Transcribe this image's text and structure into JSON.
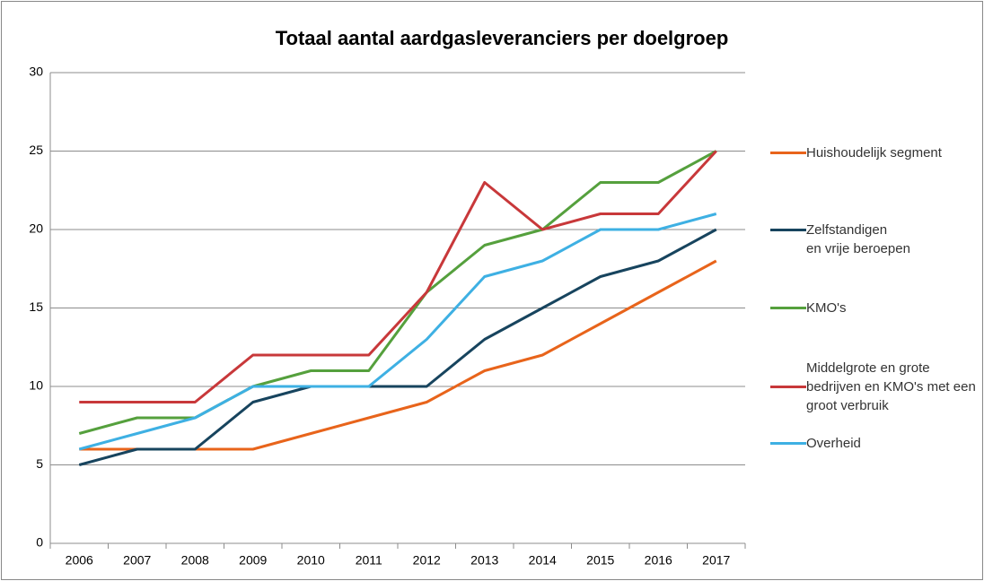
{
  "chart_data": {
    "type": "line",
    "title": "Totaal aantal aardgasleveranciers per doelgroep",
    "categories": [
      "2006",
      "2007",
      "2008",
      "2009",
      "2010",
      "2011",
      "2012",
      "2013",
      "2014",
      "2015",
      "2016",
      "2017"
    ],
    "series": [
      {
        "name": "Huishoudelijk segment",
        "color": "#e8641b",
        "values": [
          6,
          6,
          6,
          6,
          7,
          8,
          9,
          11,
          12,
          14,
          16,
          18
        ]
      },
      {
        "name": "Zelfstandigen\nen vrije beroepen",
        "color": "#17445e",
        "values": [
          5,
          6,
          6,
          9,
          10,
          10,
          10,
          13,
          15,
          17,
          18,
          20
        ]
      },
      {
        "name": "KMO's",
        "color": "#55a03d",
        "values": [
          7,
          8,
          8,
          10,
          11,
          11,
          16,
          19,
          20,
          23,
          23,
          25
        ]
      },
      {
        "name": "Middelgrote en grote bedrijven en KMO's met een groot verbruik",
        "color": "#c8383a",
        "values": [
          9,
          9,
          9,
          12,
          12,
          12,
          16,
          23,
          20,
          21,
          21,
          25
        ]
      },
      {
        "name": "Overheid",
        "color": "#3eb0e3",
        "values": [
          6,
          7,
          8,
          10,
          10,
          10,
          13,
          17,
          18,
          20,
          20,
          21
        ]
      }
    ],
    "ylim": [
      0,
      30
    ],
    "yticks": [
      0,
      5,
      10,
      15,
      20,
      25,
      30
    ],
    "grid": true,
    "legend": "right"
  }
}
